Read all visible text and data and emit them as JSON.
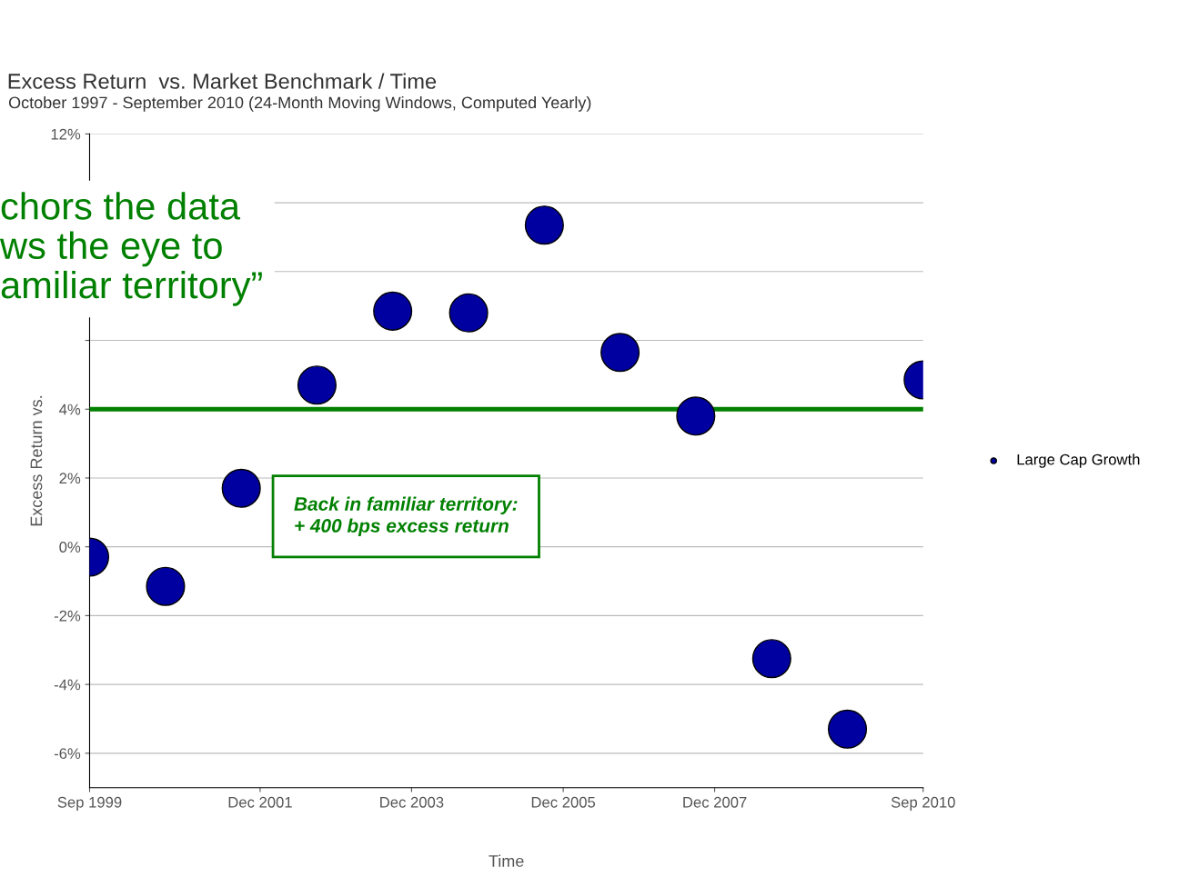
{
  "chart_data": {
    "type": "scatter",
    "title": "Excess Return  vs. Market Benchmark / Time",
    "subtitle": "October 1997 - September 2010 (24-Month Moving Windows, Computed Yearly)",
    "xlabel": "Time",
    "ylabel": "Excess Return vs.",
    "x": [
      "1999-09",
      "2000-09",
      "2001-09",
      "2002-09",
      "2003-09",
      "2004-09",
      "2005-09",
      "2006-09",
      "2007-09",
      "2008-09",
      "2009-09",
      "2010-09"
    ],
    "series": [
      {
        "name": "Large Cap Growth",
        "color": "#0000a0",
        "values": [
          -0.3,
          -1.15,
          1.7,
          4.7,
          6.85,
          6.8,
          9.35,
          5.65,
          3.8,
          -3.25,
          -5.3,
          4.85
        ]
      }
    ],
    "xlim": [
      "1999-09",
      "2010-09"
    ],
    "xticks": [
      {
        "value": "1999-09",
        "label": "Sep 1999"
      },
      {
        "value": "2001-12",
        "label": "Dec 2001"
      },
      {
        "value": "2003-12",
        "label": "Dec 2003"
      },
      {
        "value": "2005-12",
        "label": "Dec 2005"
      },
      {
        "value": "2007-12",
        "label": "Dec 2007"
      },
      {
        "value": "2010-09",
        "label": "Sep 2010"
      }
    ],
    "ylim": [
      -7,
      12
    ],
    "yticks": [
      {
        "value": -6,
        "label": "-6%"
      },
      {
        "value": -4,
        "label": "-4%"
      },
      {
        "value": -2,
        "label": "-2%"
      },
      {
        "value": 0,
        "label": "0%"
      },
      {
        "value": 2,
        "label": "2%"
      },
      {
        "value": 4,
        "label": "4%"
      },
      {
        "value": 6,
        "label": null
      },
      {
        "value": 8,
        "label": null
      },
      {
        "value": 10,
        "label": null
      },
      {
        "value": 12,
        "label": "12%"
      }
    ],
    "ref_lines": [
      {
        "axis": "y",
        "value": 4,
        "color": "#008000",
        "line_style": "solid"
      }
    ],
    "annotations": [
      "Back in familiar territory:\n+ 400 bps excess return",
      "chors the data\nws the eye to\namiliar territory”"
    ],
    "grid": "y",
    "legend": "right",
    "marker": "circle"
  }
}
